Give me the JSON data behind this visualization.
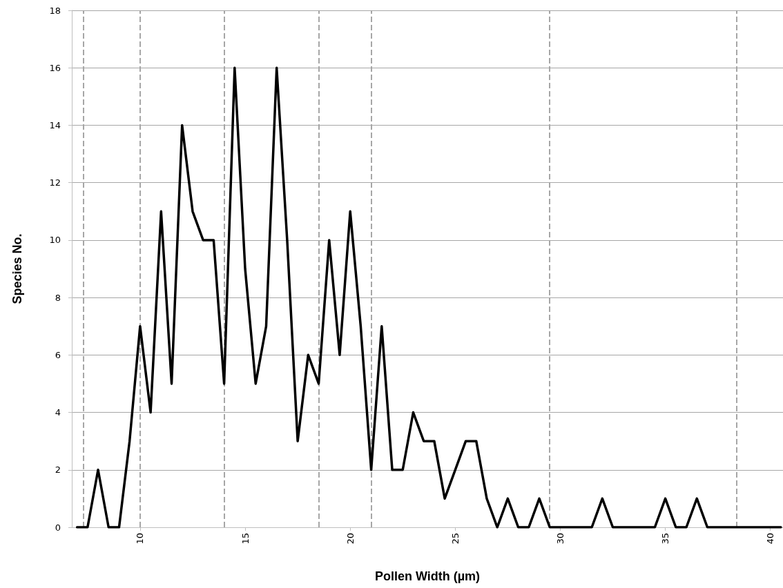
{
  "chart_data": {
    "type": "line",
    "xlabel": "Pollen Width (µm)",
    "ylabel": "Species No.",
    "x": [
      7,
      7.5,
      8,
      8.5,
      9,
      9.5,
      10,
      10.5,
      11,
      11.5,
      12,
      12.5,
      13,
      13.5,
      14,
      14.5,
      15,
      15.5,
      16,
      16.5,
      17,
      17.5,
      18,
      18.5,
      19,
      19.5,
      20,
      20.5,
      21,
      21.5,
      22,
      22.5,
      23,
      23.5,
      24,
      24.5,
      25,
      25.5,
      26,
      26.5,
      27,
      27.5,
      28,
      28.5,
      29,
      29.5,
      30,
      30.5,
      31,
      31.5,
      32,
      32.5,
      33,
      33.5,
      34,
      34.5,
      35,
      35.5,
      36,
      36.5,
      37,
      37.5,
      38,
      38.5,
      39,
      39.5,
      40,
      40.5
    ],
    "series": [
      {
        "color": "#000000",
        "values": [
          0,
          0,
          2,
          0,
          0,
          3,
          7,
          4,
          11,
          5,
          14,
          11,
          10,
          10,
          5,
          16,
          9,
          5,
          7,
          16,
          10,
          3,
          6,
          5,
          10,
          6,
          11,
          7,
          2,
          7,
          2,
          2,
          4,
          3,
          3,
          1,
          2,
          3,
          3,
          1,
          0,
          1,
          0,
          0,
          1,
          0,
          0,
          0,
          0,
          0,
          1,
          0,
          0,
          0,
          0,
          0,
          1,
          0,
          0,
          1,
          0,
          0,
          0,
          0,
          0,
          0,
          0,
          0
        ]
      }
    ],
    "xlim": [
      6.75,
      40.6
    ],
    "xticks": [
      10,
      15,
      20,
      25,
      30,
      35,
      40
    ],
    "ylim": [
      0,
      18
    ],
    "yticks": [
      0,
      2,
      4,
      6,
      8,
      10,
      12,
      14,
      16,
      18
    ],
    "grid": "y",
    "marker": "none",
    "line_style": "solid",
    "ref_lines": [
      {
        "axis": "x",
        "value": 7.3,
        "color": "#a6a6a6",
        "line_style": "dashed"
      },
      {
        "axis": "x",
        "value": 10,
        "color": "#a6a6a6",
        "line_style": "dashed"
      },
      {
        "axis": "x",
        "value": 14,
        "color": "#a6a6a6",
        "line_style": "dashed"
      },
      {
        "axis": "x",
        "value": 18.5,
        "color": "#a6a6a6",
        "line_style": "dashed"
      },
      {
        "axis": "x",
        "value": 21,
        "color": "#a6a6a6",
        "line_style": "dashed"
      },
      {
        "axis": "x",
        "value": 29.5,
        "color": "#a6a6a6",
        "line_style": "dashed"
      },
      {
        "axis": "x",
        "value": 38.4,
        "color": "#a6a6a6",
        "line_style": "dashed"
      }
    ]
  }
}
